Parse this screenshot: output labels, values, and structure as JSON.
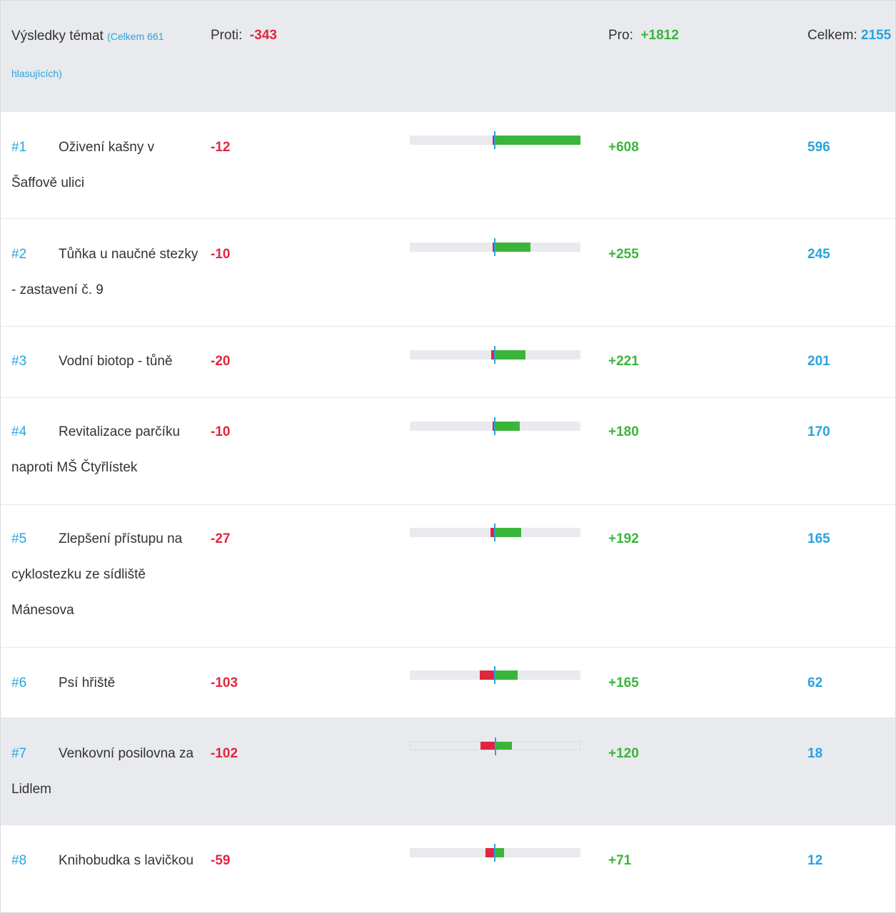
{
  "header": {
    "title": "Výsledky témat",
    "subtitle": "(Celkem 661 hlasujících)",
    "against_label": "Proti:",
    "against_total": "-343",
    "for_label": "Pro:",
    "for_total": "+1812",
    "total_label": "Celkem:",
    "total_value": "2155"
  },
  "colors": {
    "against": "#e0263f",
    "for": "#3ab53a",
    "accent": "#27a4dd",
    "track": "#e8eaed"
  },
  "bar_max": 608,
  "topics": [
    {
      "rank": "#1",
      "name": "Oživení kašny v Šaffově ulici",
      "against": "-12",
      "for": "+608",
      "total": "596",
      "against_n": 12,
      "for_n": 608
    },
    {
      "rank": "#2",
      "name": "Tůňka u naučné stezky - zastavení č. 9",
      "against": "-10",
      "for": "+255",
      "total": "245",
      "against_n": 10,
      "for_n": 255
    },
    {
      "rank": "#3",
      "name": "Vodní biotop - tůně",
      "against": "-20",
      "for": "+221",
      "total": "201",
      "against_n": 20,
      "for_n": 221
    },
    {
      "rank": "#4",
      "name": "Revitalizace parčíku naproti MŠ Čtyřlístek",
      "against": "-10",
      "for": "+180",
      "total": "170",
      "against_n": 10,
      "for_n": 180
    },
    {
      "rank": "#5",
      "name": "Zlepšení přístupu na cyklostezku ze sídliště Mánesova",
      "against": "-27",
      "for": "+192",
      "total": "165",
      "against_n": 27,
      "for_n": 192
    },
    {
      "rank": "#6",
      "name": "Psí hřiště",
      "against": "-103",
      "for": "+165",
      "total": "62",
      "against_n": 103,
      "for_n": 165
    },
    {
      "rank": "#7",
      "name": "Venkovní posilovna za Lidlem",
      "against": "-102",
      "for": "+120",
      "total": "18",
      "against_n": 102,
      "for_n": 120
    },
    {
      "rank": "#8",
      "name": "Knihobudka s lavičkou",
      "against": "-59",
      "for": "+71",
      "total": "12",
      "against_n": 59,
      "for_n": 71
    }
  ]
}
